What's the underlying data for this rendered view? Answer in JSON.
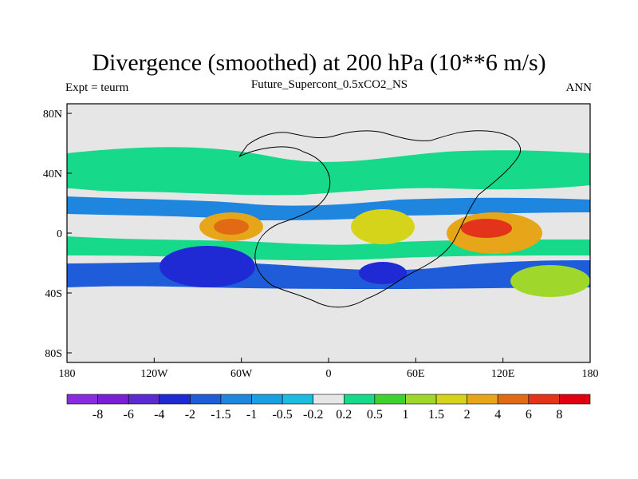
{
  "chart_data": {
    "type": "heatmap",
    "title": "Divergence (smoothed) at 200 hPa (10**6 m/s)",
    "subtitle_left": "Expt = teurm",
    "subtitle_center": "Future_Supercont_0.5xCO2_NS",
    "subtitle_right": "ANN",
    "x_ticks": [
      "180",
      "120W",
      "60W",
      "0",
      "60E",
      "120E",
      "180"
    ],
    "y_ticks": [
      "80N",
      "40N",
      "0",
      "40S",
      "80S"
    ],
    "xlim": [
      -180,
      180
    ],
    "ylim": [
      -90,
      90
    ],
    "colorbar": {
      "labels": [
        "-8",
        "-6",
        "-4",
        "-2",
        "-1.5",
        "-1",
        "-0.5",
        "-0.2",
        "0.2",
        "0.5",
        "1",
        "1.5",
        "2",
        "4",
        "6",
        "8"
      ],
      "colors": [
        "#8a2be2",
        "#7a1fd6",
        "#5a2bd0",
        "#1f2ad4",
        "#1f5cd9",
        "#1f86df",
        "#1aa0e0",
        "#1cbce0",
        "#e6e6e6",
        "#16d98a",
        "#3fd22f",
        "#9fd82a",
        "#d6d41a",
        "#e7a51a",
        "#e26a14",
        "#e3331a",
        "#e0000f"
      ]
    }
  }
}
